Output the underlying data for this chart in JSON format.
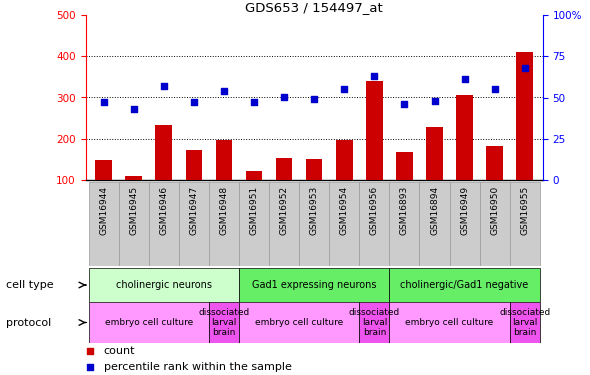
{
  "title": "GDS653 / 154497_at",
  "samples": [
    "GSM16944",
    "GSM16945",
    "GSM16946",
    "GSM16947",
    "GSM16948",
    "GSM16951",
    "GSM16952",
    "GSM16953",
    "GSM16954",
    "GSM16956",
    "GSM16893",
    "GSM16894",
    "GSM16949",
    "GSM16950",
    "GSM16955"
  ],
  "counts": [
    148,
    110,
    233,
    172,
    196,
    122,
    153,
    152,
    196,
    340,
    168,
    228,
    307,
    182,
    410
  ],
  "percentiles": [
    47,
    43,
    57,
    47,
    54,
    47,
    50,
    49,
    55,
    63,
    46,
    48,
    61,
    55,
    68
  ],
  "ylim_left": [
    100,
    500
  ],
  "ylim_right": [
    0,
    100
  ],
  "yticks_left": [
    100,
    200,
    300,
    400,
    500
  ],
  "yticks_right": [
    0,
    25,
    50,
    75,
    100
  ],
  "bar_color": "#CC0000",
  "dot_color": "#0000CC",
  "xtick_bg": "#CCCCCC",
  "ct_groups": [
    {
      "label": "cholinergic neurons",
      "start": 0,
      "end": 4,
      "color": "#CCFFCC"
    },
    {
      "label": "Gad1 expressing neurons",
      "start": 5,
      "end": 9,
      "color": "#66EE66"
    },
    {
      "label": "cholinergic/Gad1 negative",
      "start": 10,
      "end": 14,
      "color": "#66EE66"
    }
  ],
  "pr_groups": [
    {
      "label": "embryo cell culture",
      "start": 0,
      "end": 3,
      "color": "#FF99FF"
    },
    {
      "label": "dissociated\nlarval\nbrain",
      "start": 4,
      "end": 4,
      "color": "#EE55EE"
    },
    {
      "label": "embryo cell culture",
      "start": 5,
      "end": 8,
      "color": "#FF99FF"
    },
    {
      "label": "dissociated\nlarval\nbrain",
      "start": 9,
      "end": 9,
      "color": "#EE55EE"
    },
    {
      "label": "embryo cell culture",
      "start": 10,
      "end": 13,
      "color": "#FF99FF"
    },
    {
      "label": "dissociated\nlarval\nbrain",
      "start": 14,
      "end": 14,
      "color": "#EE55EE"
    }
  ]
}
